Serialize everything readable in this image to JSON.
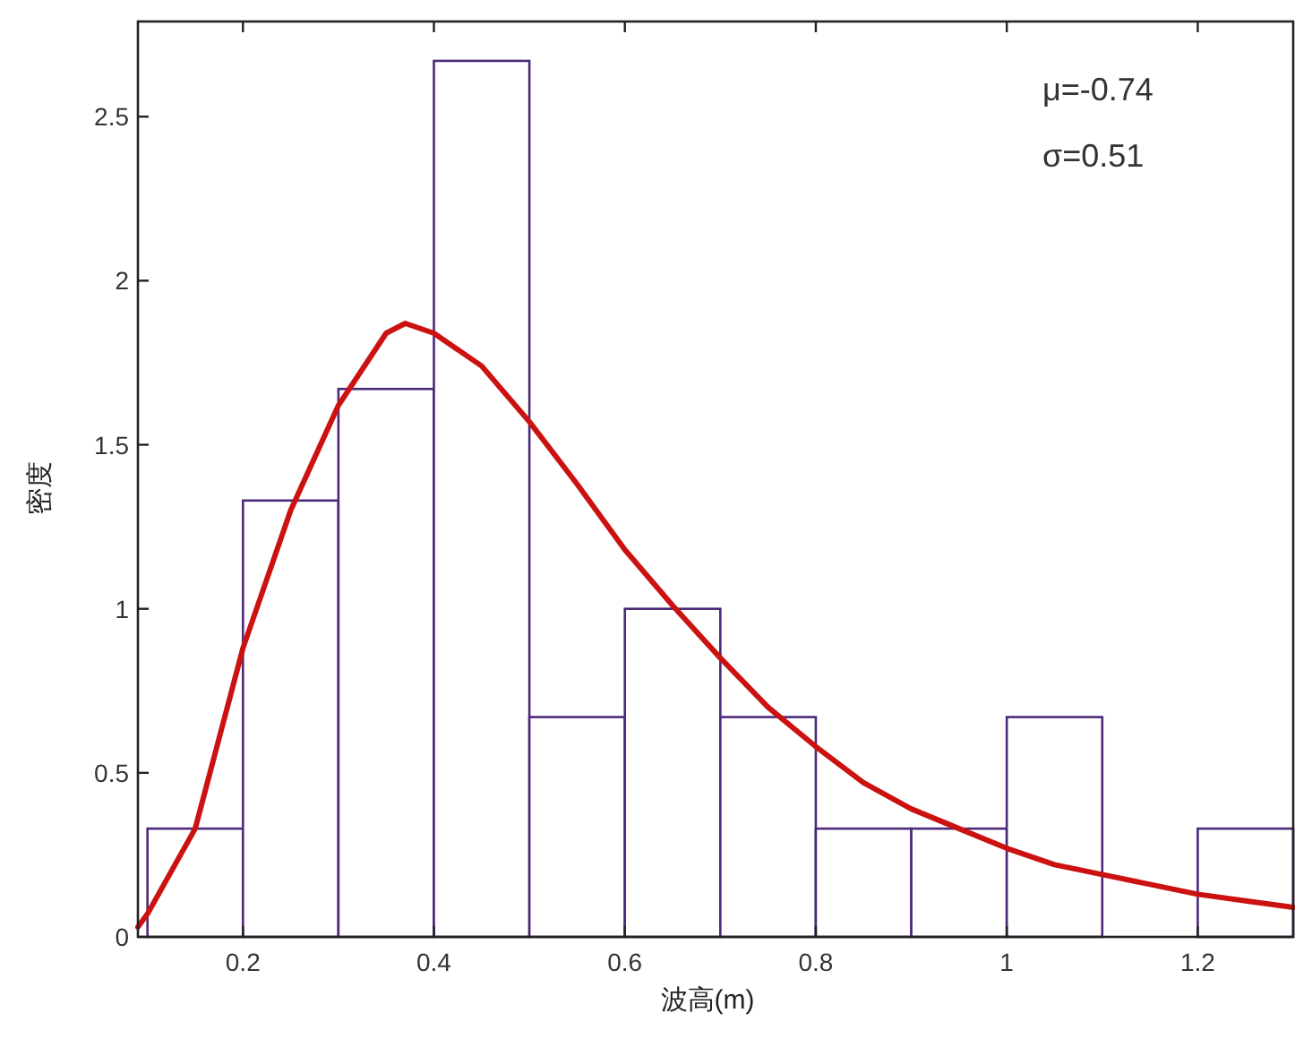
{
  "chart_data": {
    "type": "histogram",
    "xlabel": "波高(m)",
    "ylabel": "密度",
    "xlim": [
      0.09,
      1.3
    ],
    "ylim": [
      0,
      2.79
    ],
    "xticks": [
      0.2,
      0.4,
      0.6,
      0.8,
      1,
      1.2
    ],
    "yticks": [
      0,
      0.5,
      1,
      1.5,
      2,
      2.5
    ],
    "grid": false,
    "marker": "none",
    "annotations": [
      "μ=-0.74",
      "σ=0.51"
    ],
    "series": [
      {
        "color": "#4b2a78",
        "bins": [
          0.1,
          0.2,
          0.3,
          0.4,
          0.5,
          0.6,
          0.7,
          0.8,
          0.9,
          1.0,
          1.1,
          1.2,
          1.3
        ],
        "values": [
          0.33,
          1.33,
          1.67,
          2.67,
          0.67,
          1.0,
          0.67,
          0.33,
          0.33,
          0.67,
          0,
          0.33
        ]
      },
      {
        "type": "line",
        "color": "#cc1111",
        "line_style": "solid",
        "x": [
          0.09,
          0.1,
          0.15,
          0.2,
          0.25,
          0.3,
          0.35,
          0.37,
          0.4,
          0.45,
          0.5,
          0.55,
          0.6,
          0.65,
          0.7,
          0.75,
          0.8,
          0.85,
          0.9,
          0.95,
          1.0,
          1.05,
          1.1,
          1.15,
          1.2,
          1.25,
          1.3
        ],
        "values": [
          0.03,
          0.07,
          0.33,
          0.88,
          1.3,
          1.62,
          1.84,
          1.87,
          1.84,
          1.74,
          1.57,
          1.38,
          1.18,
          1.01,
          0.85,
          0.7,
          0.58,
          0.47,
          0.39,
          0.33,
          0.27,
          0.22,
          0.19,
          0.16,
          0.13,
          0.11,
          0.09
        ]
      }
    ]
  }
}
